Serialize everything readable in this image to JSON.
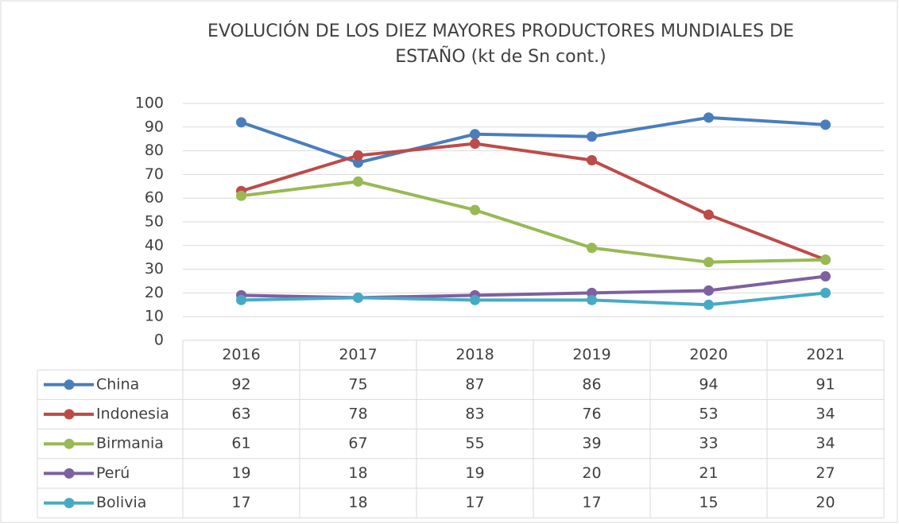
{
  "chart_data": {
    "type": "line",
    "title": [
      "EVOLUCIÓN DE LOS DIEZ MAYORES PRODUCTORES MUNDIALES DE",
      "ESTAÑO (kt de Sn cont.)"
    ],
    "categories": [
      "2016",
      "2017",
      "2018",
      "2019",
      "2020",
      "2021"
    ],
    "series": [
      {
        "name": "China",
        "color": "#4a7ebb",
        "values": [
          92,
          75,
          87,
          86,
          94,
          91
        ]
      },
      {
        "name": "Indonesia",
        "color": "#be4b48",
        "values": [
          63,
          78,
          83,
          76,
          53,
          34
        ]
      },
      {
        "name": "Birmania",
        "color": "#98b954",
        "values": [
          61,
          67,
          55,
          39,
          33,
          34
        ]
      },
      {
        "name": "Perú",
        "color": "#7d60a0",
        "values": [
          19,
          18,
          19,
          20,
          21,
          27
        ]
      },
      {
        "name": "Bolivia",
        "color": "#46aac5",
        "values": [
          17,
          18,
          17,
          17,
          15,
          20
        ]
      }
    ],
    "ylim": [
      0,
      100
    ],
    "yticks": [
      0,
      10,
      20,
      30,
      40,
      50,
      60,
      70,
      80,
      90,
      100
    ],
    "grid": true
  }
}
